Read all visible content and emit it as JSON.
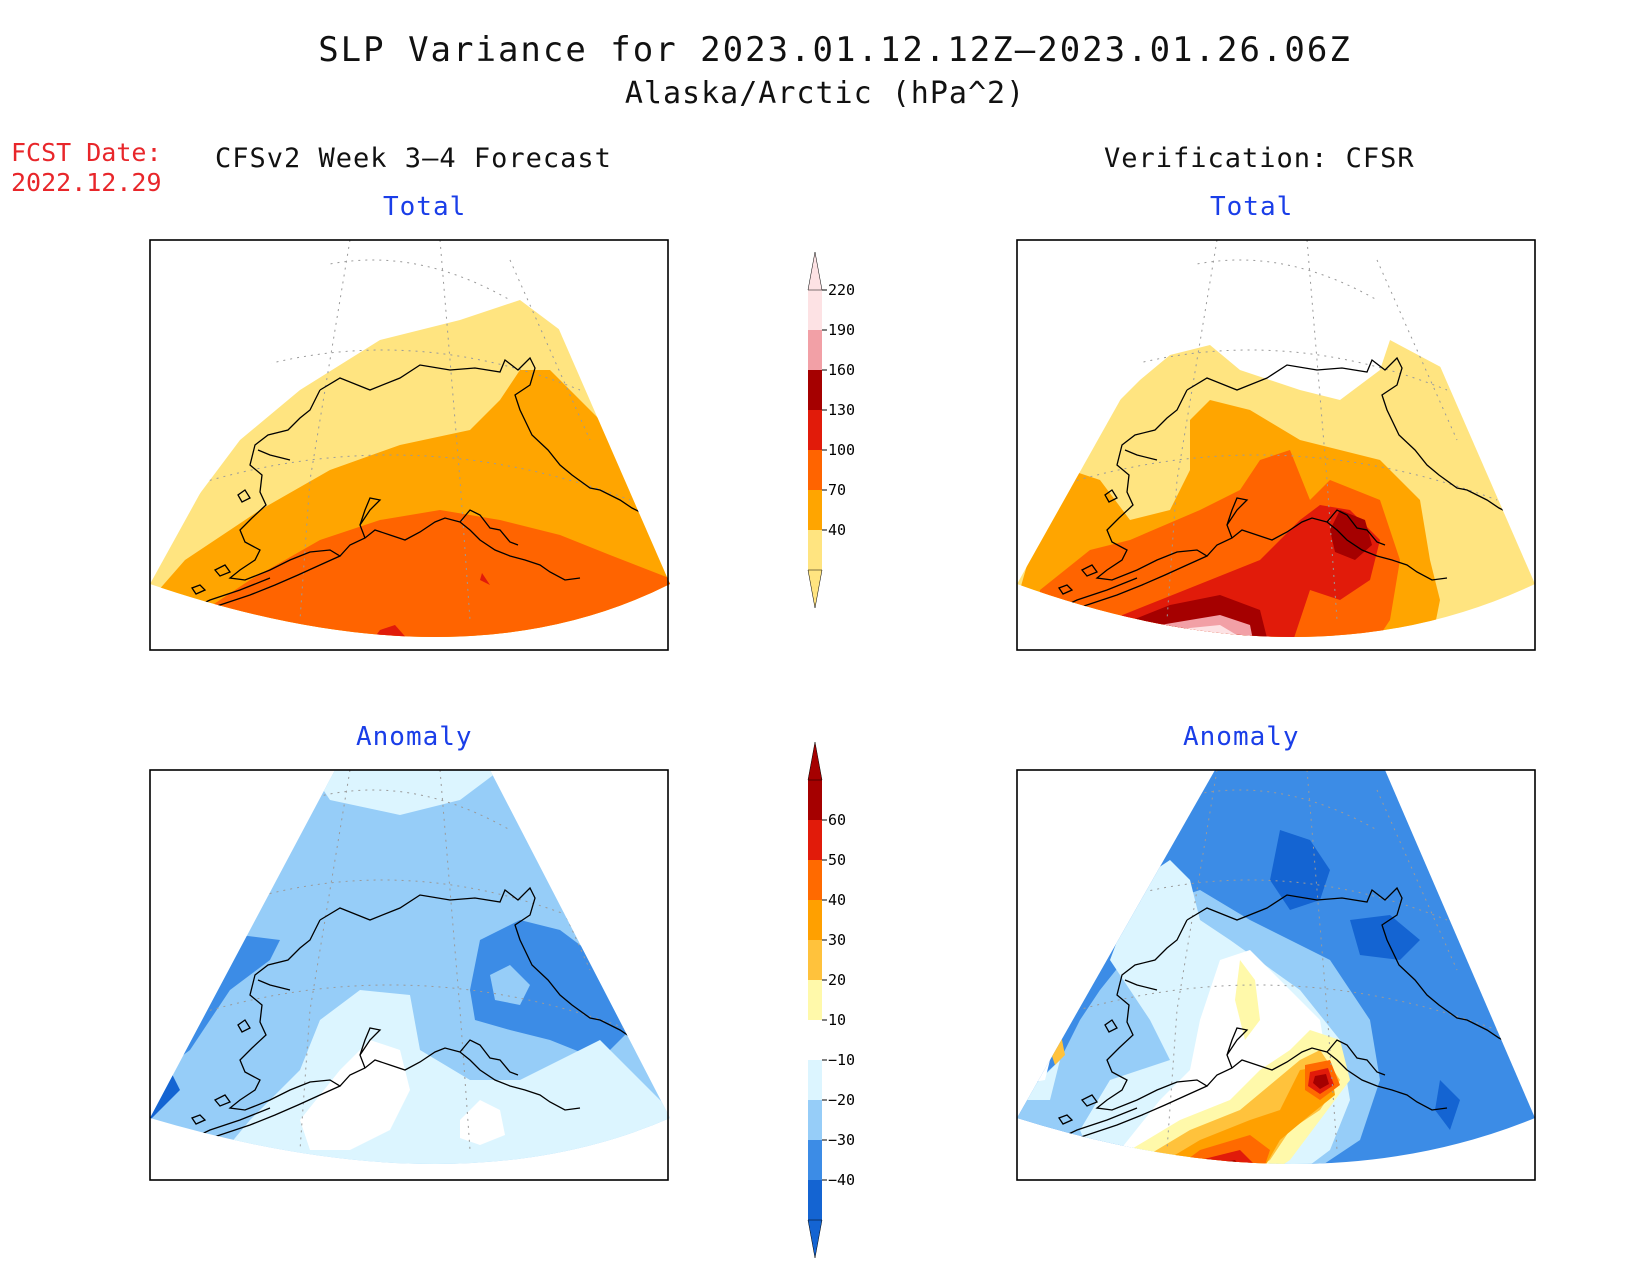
{
  "title": "SLP Variance for 2023.01.12.12Z–2023.01.26.06Z",
  "subtitle": "Alaska/Arctic (hPa^2)",
  "fcst_label": "FCST Date:",
  "fcst_date": "2022.12.29",
  "left_header": "CFSv2 Week 3–4 Forecast",
  "right_header": "Verification: CFSR",
  "panels": {
    "forecast_total": {
      "title": "Total"
    },
    "verification_total": {
      "title": "Total"
    },
    "forecast_anomaly": {
      "title": "Anomaly"
    },
    "verification_anomaly": {
      "title": "Anomaly"
    }
  },
  "total_colorbar": {
    "labels": [
      "40",
      "70",
      "100",
      "130",
      "160",
      "190",
      "220"
    ],
    "colors": [
      "#ffe480",
      "#ffa500",
      "#ff6400",
      "#e11b0a",
      "#a50000",
      "#f2a0a6",
      "#fde2e4"
    ]
  },
  "anomaly_colorbar": {
    "labels": [
      "−40",
      "−30",
      "−20",
      "−10",
      "10",
      "20",
      "30",
      "40",
      "50",
      "60"
    ],
    "colors": [
      "#1464d2",
      "#3c8ce6",
      "#96cdf8",
      "#dcf5ff",
      "#ffffff",
      "#fff9aa",
      "#ffc23c",
      "#ffa000",
      "#ff6a00",
      "#e11b0a",
      "#a50000"
    ]
  }
}
